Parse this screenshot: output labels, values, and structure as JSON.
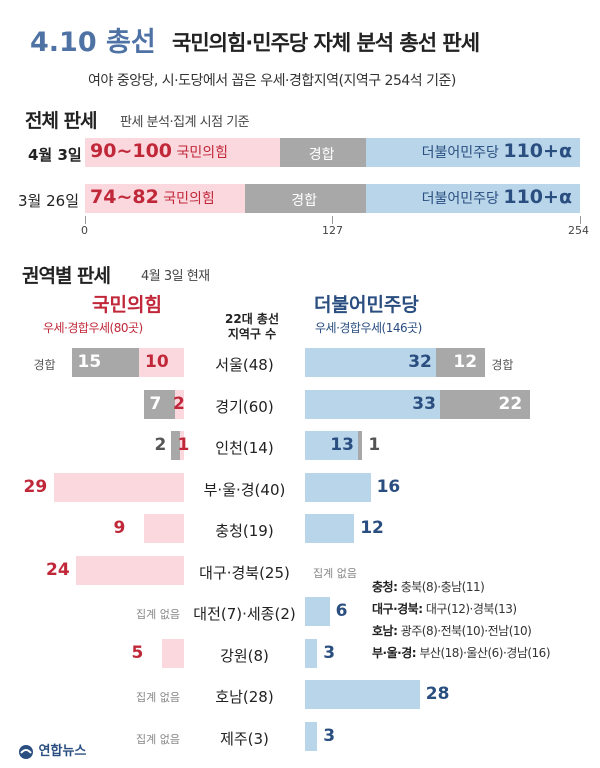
{
  "header": {
    "title_main": "4.10 총선",
    "title_rest": "국민의힘·민주당 자체 분석 총선 판세",
    "subtitle": "여야 중앙당, 시·도당에서 꼽은 우세·경합지역(지역구 254석 기준)"
  },
  "overall": {
    "title": "전체 판세",
    "subtitle": "판세 분석·집계 시점 기준",
    "axis_ticks": [
      "0",
      "127",
      "254"
    ],
    "axis_max": 254,
    "rows": [
      {
        "label": "4월 3일",
        "ppp_text": "90~100",
        "ppp_name": "국민의힘",
        "ppp_value": 100,
        "tie_text": "경합",
        "dem_name": "더불어민주당",
        "dem_text": "110+α",
        "dem_value": 110
      },
      {
        "label": "3월 26일",
        "ppp_text": "74~82",
        "ppp_name": "국민의힘",
        "ppp_value": 82,
        "tie_text": "경합",
        "dem_name": "더불어민주당",
        "dem_text": "110+α",
        "dem_value": 110
      }
    ]
  },
  "regional": {
    "title": "권역별 판세",
    "subtitle": "4월 3일 현재",
    "ppp_header": "국민의힘",
    "ppp_subheader": "우세·경합우세(80곳)",
    "dem_header": "더불어민주당",
    "dem_subheader": "우세·경합우세(146곳)",
    "center_header_1": "22대 총선",
    "center_header_2": "지역구 수",
    "tie_label": "경합",
    "none_label": "집계 없음"
  },
  "chart_data": {
    "type": "bar",
    "categories": [
      "서울(48)",
      "경기(60)",
      "인천(14)",
      "부·울·경(40)",
      "충청(19)",
      "대구·경북(25)",
      "대전(7)·세종(2)",
      "강원(8)",
      "호남(28)",
      "제주(3)"
    ],
    "series": [
      {
        "name": "국민의힘",
        "values": [
          10,
          2,
          1,
          29,
          9,
          24,
          null,
          5,
          null,
          null
        ]
      },
      {
        "name": "국민의힘 경합",
        "values": [
          15,
          7,
          2,
          null,
          null,
          null,
          null,
          null,
          null,
          null
        ]
      },
      {
        "name": "더불어민주당",
        "values": [
          32,
          33,
          13,
          16,
          12,
          null,
          6,
          3,
          28,
          3
        ]
      },
      {
        "name": "더불어민주당 경합",
        "values": [
          12,
          22,
          1,
          null,
          null,
          null,
          null,
          null,
          null,
          null
        ]
      }
    ]
  },
  "notes": [
    {
      "key": "충청:",
      "text": " 충북(8)·충남(11)"
    },
    {
      "key": "대구·경북:",
      "text": " 대구(12)·경북(13)"
    },
    {
      "key": "호남:",
      "text": " 광주(8)·전북(10)·전남(10)"
    },
    {
      "key": "부·울·경:",
      "text": " 부산(18)·울산(6)·경남(16)"
    }
  ],
  "source": "연합뉴스",
  "colors": {
    "ppp": "#c0283a",
    "ppp_bar": "#fbd8dd",
    "dem": "#2a4e80",
    "dem_bar": "#b9d5ea",
    "tie_bar": "#a8a8a8",
    "title_accent": "#4f72a5"
  }
}
